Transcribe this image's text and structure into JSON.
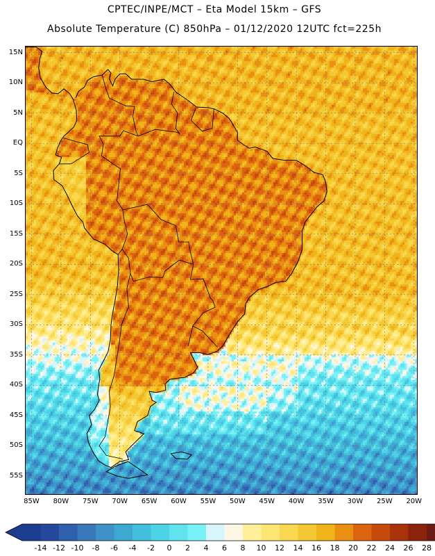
{
  "header": {
    "line1": "CPTEC/INPE/MCT –  Eta Model 15km – GFS",
    "line2": "Absolute Temperature (C) 850hPa – 01/12/2020 12UTC fct=225h"
  },
  "map": {
    "lon_range": [
      -86,
      -19.5
    ],
    "lat_range": [
      -58,
      16
    ],
    "y_axis_labels": [
      {
        "lat": 15,
        "text": "15N"
      },
      {
        "lat": 10,
        "text": "10N"
      },
      {
        "lat": 5,
        "text": "5N"
      },
      {
        "lat": 0,
        "text": "EQ"
      },
      {
        "lat": -5,
        "text": "5S"
      },
      {
        "lat": -10,
        "text": "10S"
      },
      {
        "lat": -15,
        "text": "15S"
      },
      {
        "lat": -20,
        "text": "20S"
      },
      {
        "lat": -25,
        "text": "25S"
      },
      {
        "lat": -30,
        "text": "30S"
      },
      {
        "lat": -35,
        "text": "35S"
      },
      {
        "lat": -40,
        "text": "40S"
      },
      {
        "lat": -45,
        "text": "45S"
      },
      {
        "lat": -50,
        "text": "50S"
      },
      {
        "lat": -55,
        "text": "55S"
      }
    ],
    "x_axis_labels": [
      {
        "lon": -85,
        "text": "85W"
      },
      {
        "lon": -80,
        "text": "80W"
      },
      {
        "lon": -75,
        "text": "75W"
      },
      {
        "lon": -70,
        "text": "70W"
      },
      {
        "lon": -65,
        "text": "65W"
      },
      {
        "lon": -60,
        "text": "60W"
      },
      {
        "lon": -55,
        "text": "55W"
      },
      {
        "lon": -50,
        "text": "50W"
      },
      {
        "lon": -45,
        "text": "45W"
      },
      {
        "lon": -40,
        "text": "40W"
      },
      {
        "lon": -35,
        "text": "35W"
      },
      {
        "lon": -30,
        "text": "30W"
      },
      {
        "lon": -25,
        "text": "25W"
      },
      {
        "lon": -20,
        "text": "20W"
      }
    ]
  },
  "colorbar": {
    "labels": [
      "-14",
      "-12",
      "-10",
      "-8",
      "-6",
      "-4",
      "-2",
      "0",
      "2",
      "4",
      "6",
      "8",
      "10",
      "12",
      "14",
      "16",
      "18",
      "20",
      "22",
      "24",
      "26",
      "28"
    ],
    "colors": [
      "#1c3d8f",
      "#24489c",
      "#2f60ad",
      "#3a78bc",
      "#3f92c8",
      "#3fa8d2",
      "#43bfdd",
      "#4dd3e6",
      "#60e3ee",
      "#78f2f6",
      "#d7f5fb",
      "#fff7e6",
      "#ffef9a",
      "#fde673",
      "#f9d850",
      "#f4c832",
      "#f0b31a",
      "#ea8f12",
      "#dc6410",
      "#c54a0c",
      "#a8330b",
      "#8a220c",
      "#6d1a14"
    ]
  },
  "colors": {
    "land_warm": "#c86010",
    "sea_mid": "#f0b020",
    "cold": "#40c0e0"
  }
}
